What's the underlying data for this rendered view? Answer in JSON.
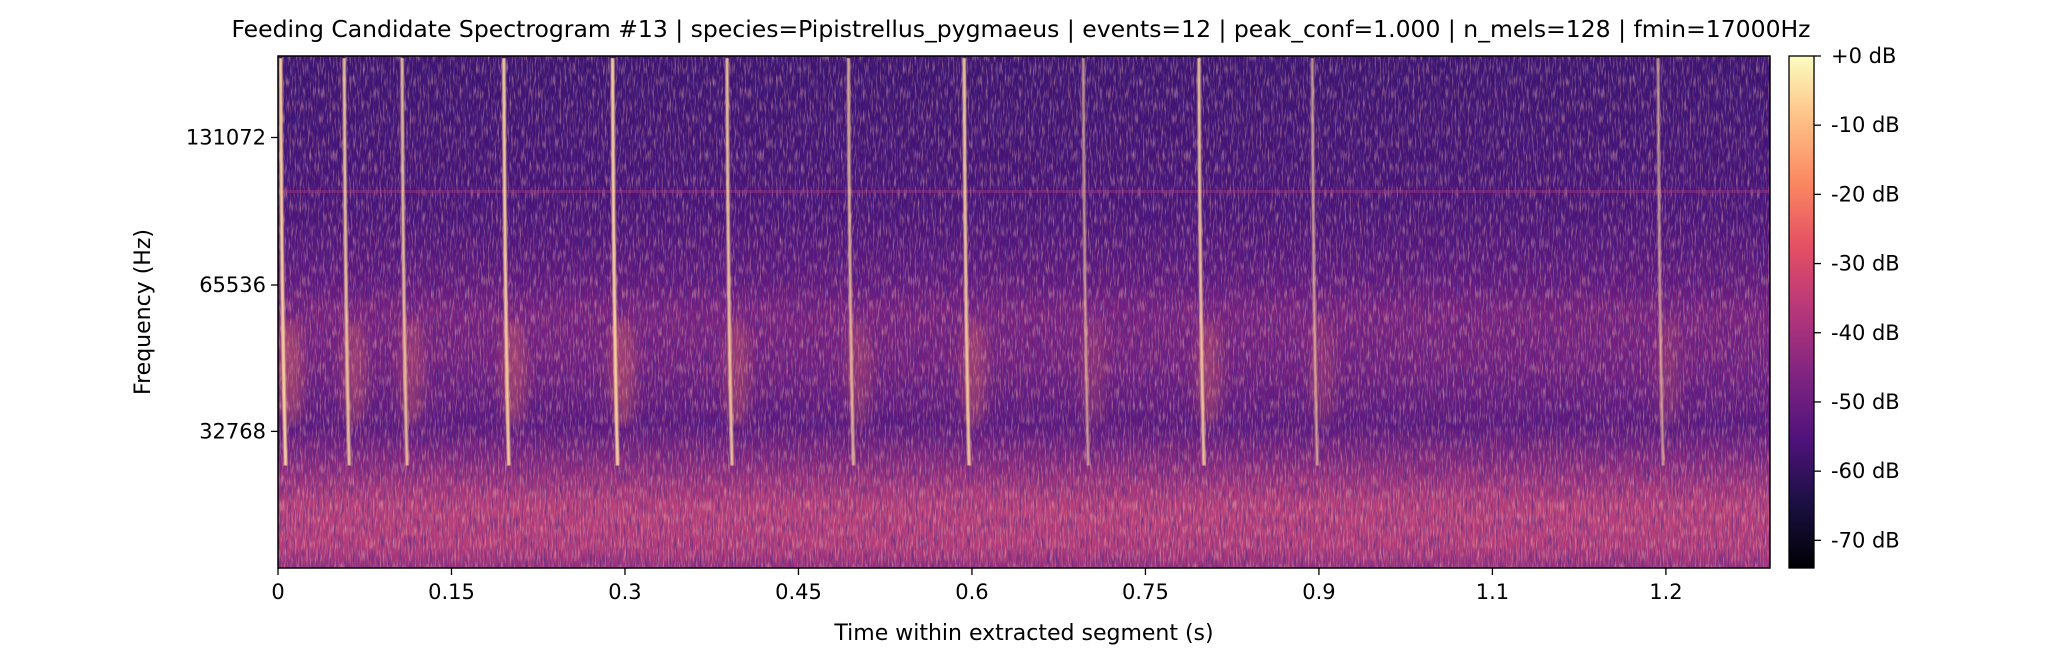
{
  "chart_data": {
    "type": "heatmap",
    "title": "Feeding Candidate Spectrogram #13 | species=Pipistrellus_pygmaeus | events=12 | peak_conf=1.000 | n_mels=128 | fmin=17000Hz",
    "xlabel": "Time within extracted segment (s)",
    "ylabel": "Frequency (Hz)",
    "x_ticks": [
      "0",
      "0.15",
      "0.3",
      "0.45",
      "0.6",
      "0.75",
      "0.9",
      "1.1",
      "1.2"
    ],
    "x_tick_values": [
      0,
      0.15,
      0.3,
      0.45,
      0.6,
      0.75,
      0.9,
      1.05,
      1.2
    ],
    "xlim": [
      0,
      1.29
    ],
    "y_scale": "mel",
    "y_ticks": [
      "131072",
      "65536",
      "32768"
    ],
    "y_tick_values": [
      131072,
      65536,
      32768
    ],
    "ylim": [
      17000,
      192000
    ],
    "colormap": "magma",
    "colorbar": {
      "ticks": [
        "+0 dB",
        "-10 dB",
        "-20 dB",
        "-30 dB",
        "-40 dB",
        "-50 dB",
        "-60 dB",
        "-70 dB"
      ],
      "tick_values": [
        0,
        -10,
        -20,
        -30,
        -40,
        -50,
        -60,
        -70
      ],
      "range": [
        -74,
        0
      ]
    },
    "calls": [
      {
        "t": 0.004,
        "strength": 1.0
      },
      {
        "t": 0.059,
        "strength": 0.85
      },
      {
        "t": 0.109,
        "strength": 0.8
      },
      {
        "t": 0.197,
        "strength": 0.95
      },
      {
        "t": 0.291,
        "strength": 1.0
      },
      {
        "t": 0.39,
        "strength": 0.85
      },
      {
        "t": 0.495,
        "strength": 0.7
      },
      {
        "t": 0.595,
        "strength": 0.9
      },
      {
        "t": 0.698,
        "strength": 0.5
      },
      {
        "t": 0.798,
        "strength": 0.85
      },
      {
        "t": 0.896,
        "strength": 0.55
      },
      {
        "t": 1.195,
        "strength": 0.5
      }
    ]
  }
}
